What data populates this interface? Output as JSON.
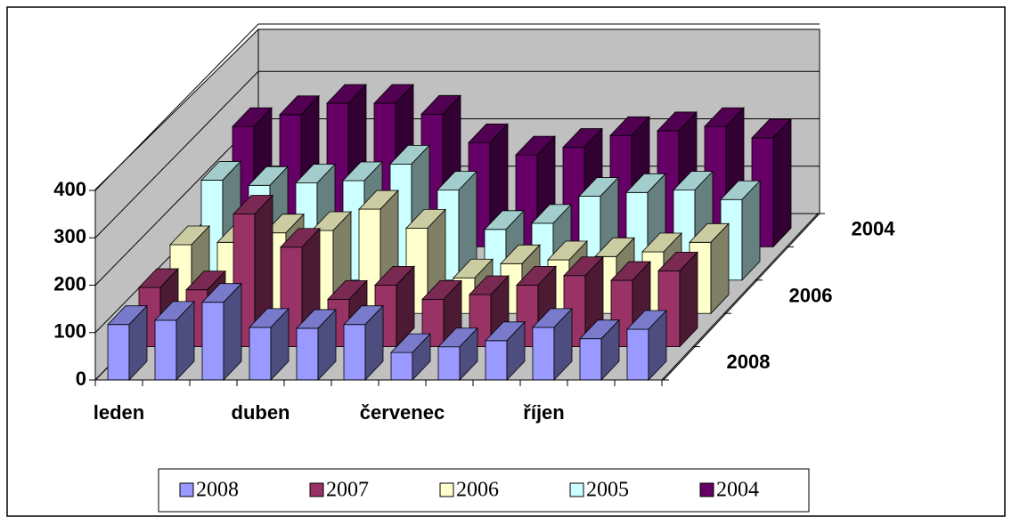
{
  "chart_data": {
    "type": "bar3d",
    "categories": [
      "leden",
      null,
      null,
      "duben",
      null,
      null,
      "červenec",
      null,
      null,
      "říjen",
      null,
      null
    ],
    "series": [
      {
        "name": "2008",
        "color": "#9999ff",
        "values": [
          117,
          126,
          164,
          111,
          109,
          117,
          58,
          70,
          83,
          111,
          87,
          107
        ]
      },
      {
        "name": "2007",
        "color": "#993366",
        "values": [
          125,
          120,
          280,
          210,
          100,
          130,
          100,
          110,
          130,
          150,
          140,
          160
        ]
      },
      {
        "name": "2006",
        "color": "#ffffcc",
        "values": [
          145,
          150,
          170,
          175,
          220,
          180,
          75,
          105,
          113,
          120,
          130,
          150
        ]
      },
      {
        "name": "2005",
        "color": "#ccffff",
        "values": [
          211,
          200,
          205,
          210,
          245,
          190,
          107,
          120,
          177,
          185,
          190,
          170
        ]
      },
      {
        "name": "2004",
        "color": "#660066",
        "values": [
          254,
          279,
          303,
          303,
          280,
          220,
          194,
          210,
          235,
          245,
          254,
          230
        ]
      }
    ],
    "ylim": [
      0,
      400
    ],
    "yticks": [
      0,
      100,
      200,
      300,
      400
    ],
    "grid": true,
    "legend": "bottom"
  }
}
